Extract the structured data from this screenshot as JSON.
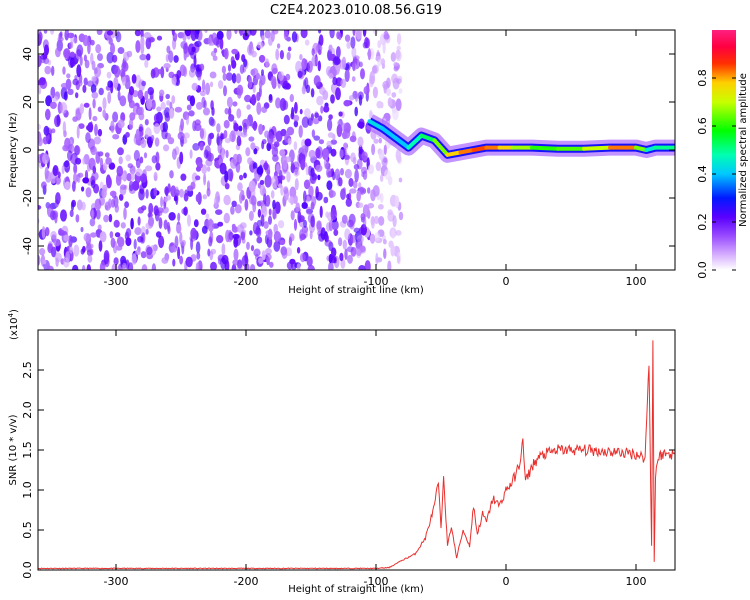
{
  "title": "C2E4.2023.010.08.56.G19",
  "chart_data": [
    {
      "type": "heatmap",
      "xlabel": "Height of straight line (km)",
      "ylabel": "Frequency (Hz)",
      "xlim": [
        -360,
        130
      ],
      "ylim": [
        -50,
        50
      ],
      "xticks": [
        -300,
        -200,
        -100,
        0,
        100
      ],
      "yticks": [
        -40,
        -20,
        0,
        20,
        40
      ],
      "colorbar": {
        "label": "Normalized spectral amplitude",
        "range": [
          0.0,
          1.0
        ],
        "ticks": [
          0.0,
          0.2,
          0.4,
          0.6,
          0.8
        ],
        "colormap": "white-purple-blue-cyan-green-yellow-red-magenta"
      },
      "noise_region_x": [
        -360,
        -90
      ],
      "signal_trace": {
        "x": [
          -105,
          -95,
          -85,
          -75,
          -65,
          -55,
          -45,
          -35,
          -25,
          -15,
          -5,
          5,
          20,
          40,
          60,
          80,
          100,
          108,
          115,
          130
        ],
        "frequency": [
          12,
          9,
          5,
          1,
          6,
          4,
          -2,
          -1,
          0,
          1,
          1,
          1,
          1,
          0.5,
          0.5,
          1,
          1,
          0,
          1,
          1
        ],
        "amplitude": [
          0.4,
          0.45,
          0.35,
          0.45,
          0.5,
          0.55,
          0.75,
          0.8,
          0.85,
          0.85,
          0.8,
          0.75,
          0.6,
          0.6,
          0.65,
          0.75,
          0.9,
          0.4,
          0.5,
          0.5
        ]
      }
    },
    {
      "type": "line",
      "xlabel": "Height of straight line (km)",
      "ylabel": "SNR (10 * v/v)",
      "yscale_label": "(x10",
      "yscale_exponent": "4",
      "xlim": [
        -360,
        130
      ],
      "ylim": [
        0,
        3.0
      ],
      "xticks": [
        -300,
        -200,
        -100,
        0,
        100
      ],
      "yticks": [
        0.0,
        0.5,
        1.0,
        1.5,
        2.0,
        2.5
      ],
      "line_color": "#e8312e",
      "series": [
        {
          "x": [
            -360,
            -300,
            -200,
            -100,
            -90,
            -80,
            -70,
            -62,
            -55,
            -52,
            -50,
            -48,
            -45,
            -42,
            -38,
            -33,
            -28,
            -25,
            -22,
            -18,
            -15,
            -10,
            -5,
            0,
            5,
            10,
            13,
            15,
            20,
            25,
            30,
            40,
            60,
            80,
            100,
            107,
            110,
            112,
            113,
            114,
            115,
            117,
            120,
            130
          ],
          "y": [
            0.02,
            0.02,
            0.02,
            0.02,
            0.03,
            0.12,
            0.2,
            0.4,
            0.8,
            1.1,
            0.5,
            1.2,
            0.3,
            0.55,
            0.15,
            0.5,
            0.3,
            0.8,
            0.45,
            0.7,
            0.6,
            0.9,
            0.8,
            1.0,
            1.1,
            1.3,
            1.6,
            1.1,
            1.3,
            1.4,
            1.45,
            1.5,
            1.5,
            1.48,
            1.45,
            1.4,
            2.6,
            0.3,
            2.9,
            0.1,
            1.2,
            1.4,
            1.45,
            1.45
          ]
        }
      ]
    }
  ]
}
